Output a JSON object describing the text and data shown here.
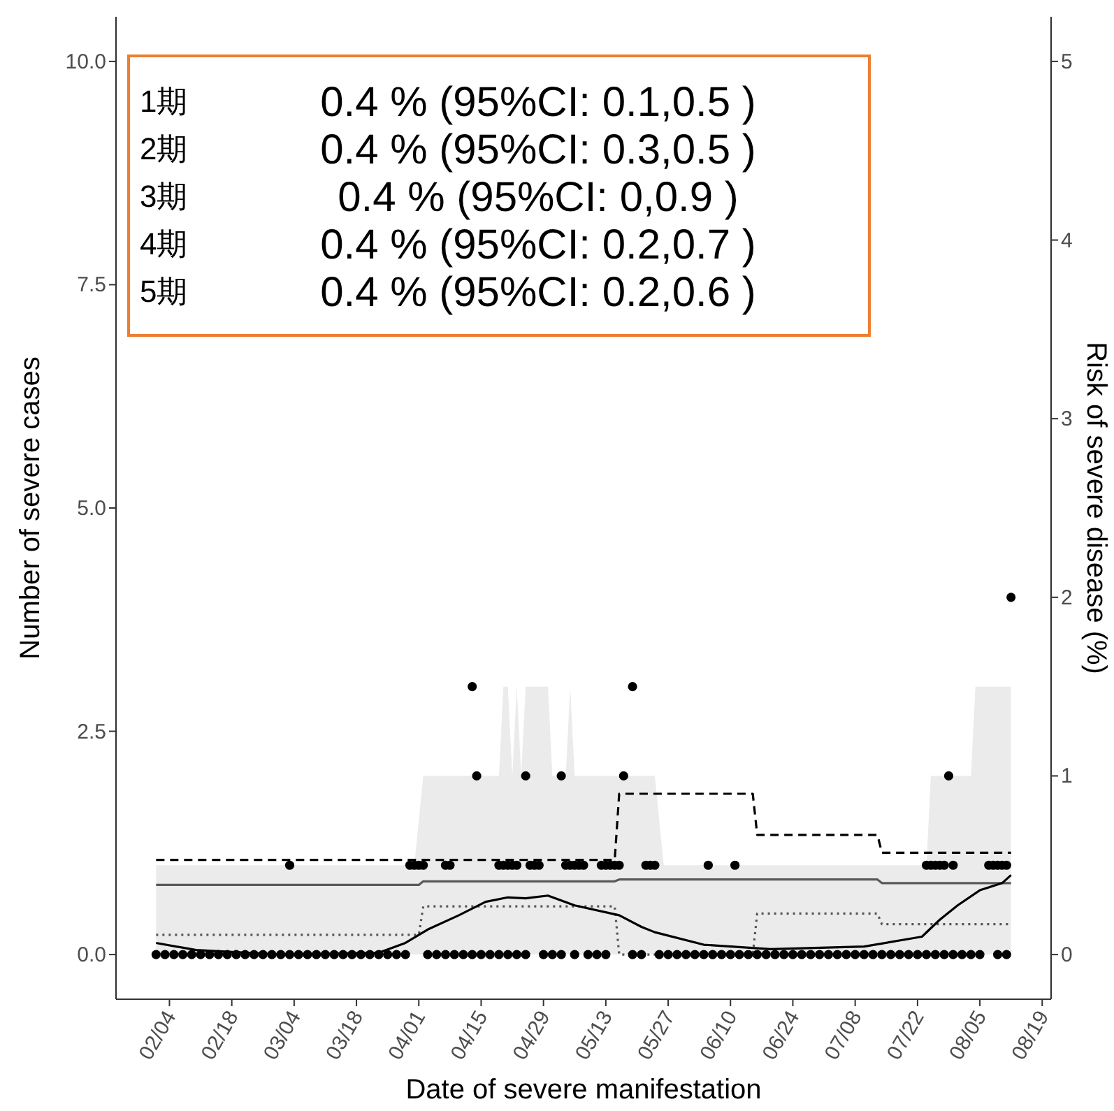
{
  "chart_data": {
    "type": "scatter",
    "xlabel": "Date of severe manifestation",
    "ylabel": "Number of severe cases",
    "y2label": "Risk of severe disease (%)",
    "xlim": [
      "--01-23",
      "--08-21"
    ],
    "xticks": [
      {
        "value": "--02-04",
        "label": "02/04"
      },
      {
        "value": "--02-18",
        "label": "02/18"
      },
      {
        "value": "--03-04",
        "label": "03/04"
      },
      {
        "value": "--03-18",
        "label": "03/18"
      },
      {
        "value": "--04-01",
        "label": "04/01"
      },
      {
        "value": "--04-15",
        "label": "04/15"
      },
      {
        "value": "--04-29",
        "label": "04/29"
      },
      {
        "value": "--05-13",
        "label": "05/13"
      },
      {
        "value": "--05-27",
        "label": "05/27"
      },
      {
        "value": "--06-10",
        "label": "06/10"
      },
      {
        "value": "--06-24",
        "label": "06/24"
      },
      {
        "value": "--07-08",
        "label": "07/08"
      },
      {
        "value": "--07-22",
        "label": "07/22"
      },
      {
        "value": "--08-05",
        "label": "08/05"
      },
      {
        "value": "--08-19",
        "label": "08/19"
      }
    ],
    "ylim": [
      -0.5,
      10.5
    ],
    "yticks": [
      {
        "value": 0,
        "label": "0.0"
      },
      {
        "value": 2.5,
        "label": "2.5"
      },
      {
        "value": 5,
        "label": "5.0"
      },
      {
        "value": 7.5,
        "label": "7.5"
      },
      {
        "value": 10,
        "label": "10.0"
      }
    ],
    "y2lim": [
      -0.25,
      5.25
    ],
    "y2ticks": [
      0,
      1,
      2,
      3,
      4,
      5
    ],
    "grid": false,
    "series": [
      {
        "type": "area",
        "color": "#ebebeb",
        "x": [
          "--02-01",
          "--03-31",
          "--04-02",
          "--04-19",
          "--04-20",
          "--04-21",
          "--04-22",
          "--04-23",
          "--04-24",
          "--04-25",
          "--04-30",
          "--05-01",
          "--05-04",
          "--05-05",
          "--05-06",
          "--05-24",
          "--05-26",
          "--07-24",
          "--07-25",
          "--08-03",
          "--08-04",
          "--08-12"
        ],
        "values": [
          1,
          1,
          2,
          2,
          3,
          3,
          2,
          3,
          2,
          3,
          3,
          2,
          2,
          3,
          2,
          2,
          1,
          1,
          2,
          2,
          3,
          3
        ]
      },
      {
        "type": "line",
        "axis": "y2",
        "color": "#595959",
        "line_style": "solid",
        "x": [
          "--02-01",
          "--04-01",
          "--04-02",
          "--05-15",
          "--05-16",
          "--06-15",
          "--06-16",
          "--07-13",
          "--07-14",
          "--08-12"
        ],
        "values": [
          0.39,
          0.39,
          0.41,
          0.41,
          0.42,
          0.42,
          0.42,
          0.42,
          0.4,
          0.4
        ]
      },
      {
        "type": "line",
        "axis": "y2",
        "color": "#000000",
        "line_style": "dashed",
        "x": [
          "--02-01",
          "--04-01",
          "--04-02",
          "--05-15",
          "--05-16",
          "--06-15",
          "--06-16",
          "--07-13",
          "--07-14",
          "--08-12"
        ],
        "values": [
          0.53,
          0.53,
          0.53,
          0.53,
          0.9,
          0.9,
          0.67,
          0.67,
          0.57,
          0.57
        ]
      },
      {
        "type": "line",
        "axis": "y2",
        "color": "#555555",
        "line_style": "dotted",
        "x": [
          "--02-01",
          "--04-01",
          "--04-02",
          "--05-15",
          "--05-16",
          "--06-15",
          "--06-16",
          "--07-13",
          "--07-14",
          "--08-12"
        ],
        "values": [
          0.11,
          0.11,
          0.27,
          0.27,
          0,
          0,
          0.23,
          0.23,
          0.17,
          0.17
        ]
      },
      {
        "type": "line",
        "axis": "y",
        "color": "#000000",
        "line_style": "solid",
        "x": [
          "--02-01",
          "--02-10",
          "--03-01",
          "--03-23",
          "--03-29",
          "--04-03",
          "--04-10",
          "--04-16",
          "--04-21",
          "--04-25",
          "--04-30",
          "--05-06",
          "--05-16",
          "--05-21",
          "--05-24",
          "--06-04",
          "--06-19",
          "--07-10",
          "--07-23",
          "--07-27",
          "--07-31",
          "--08-05",
          "--08-10",
          "--08-12"
        ],
        "values": [
          0.13,
          0.05,
          0,
          0.02,
          0.13,
          0.28,
          0.44,
          0.59,
          0.64,
          0.63,
          0.66,
          0.55,
          0.44,
          0.31,
          0.25,
          0.11,
          0.06,
          0.09,
          0.2,
          0.39,
          0.55,
          0.72,
          0.8,
          0.89
        ]
      },
      {
        "marker": "circle",
        "axis": "y",
        "color": "#000000",
        "x": [
          "--02-01",
          "--02-03",
          "--02-05",
          "--02-07",
          "--02-09",
          "--02-11",
          "--02-13",
          "--02-15",
          "--02-17",
          "--02-19",
          "--02-21",
          "--02-23",
          "--02-25",
          "--02-27",
          "--03-01",
          "--03-03",
          "--03-05",
          "--03-07",
          "--03-09",
          "--03-11",
          "--03-13",
          "--03-15",
          "--03-17",
          "--03-19",
          "--03-21",
          "--03-23",
          "--03-25",
          "--03-27",
          "--03-29",
          "--04-03",
          "--04-05",
          "--04-07",
          "--04-09",
          "--04-11",
          "--04-13",
          "--04-15",
          "--04-17",
          "--04-19",
          "--04-21",
          "--04-23",
          "--04-25",
          "--04-29",
          "--05-01",
          "--05-03",
          "--05-06",
          "--05-09",
          "--05-11",
          "--05-13",
          "--05-19",
          "--05-21",
          "--05-25",
          "--05-27",
          "--05-29",
          "--05-31",
          "--06-02",
          "--06-04",
          "--06-06",
          "--06-08",
          "--06-10",
          "--06-12",
          "--06-14",
          "--06-16",
          "--06-18",
          "--06-20",
          "--06-22",
          "--06-24",
          "--06-26",
          "--06-28",
          "--06-30",
          "--07-02",
          "--07-04",
          "--07-06",
          "--07-08",
          "--07-10",
          "--07-12",
          "--07-14",
          "--07-16",
          "--07-18",
          "--07-20",
          "--07-22",
          "--07-24",
          "--07-26",
          "--07-28",
          "--07-30",
          "--08-01",
          "--08-03",
          "--08-05",
          "--08-09",
          "--08-11",
          "--03-03",
          "--03-30",
          "--03-31",
          "--04-01",
          "--04-02",
          "--04-07",
          "--04-08",
          "--04-19",
          "--04-20",
          "--04-21",
          "--04-22",
          "--04-23",
          "--04-26",
          "--04-27",
          "--04-28",
          "--05-04",
          "--05-05",
          "--05-06",
          "--05-07",
          "--05-08",
          "--05-12",
          "--05-13",
          "--05-14",
          "--05-15",
          "--05-16",
          "--05-22",
          "--05-23",
          "--05-24",
          "--06-05",
          "--06-11",
          "--07-24",
          "--07-25",
          "--07-26",
          "--07-27",
          "--07-28",
          "--07-30",
          "--08-07",
          "--08-08",
          "--08-09",
          "--08-10",
          "--08-11",
          "--04-14",
          "--04-25",
          "--05-03",
          "--05-17",
          "--07-29",
          "--04-13",
          "--05-19",
          "--08-12"
        ],
        "values": [
          0,
          0,
          0,
          0,
          0,
          0,
          0,
          0,
          0,
          0,
          0,
          0,
          0,
          0,
          0,
          0,
          0,
          0,
          0,
          0,
          0,
          0,
          0,
          0,
          0,
          0,
          0,
          0,
          0,
          0,
          0,
          0,
          0,
          0,
          0,
          0,
          0,
          0,
          0,
          0,
          0,
          0,
          0,
          0,
          0,
          0,
          0,
          0,
          0,
          0,
          0,
          0,
          0,
          0,
          0,
          0,
          0,
          0,
          0,
          0,
          0,
          0,
          0,
          0,
          0,
          0,
          0,
          0,
          0,
          0,
          0,
          0,
          0,
          0,
          0,
          0,
          0,
          0,
          0,
          0,
          0,
          0,
          0,
          0,
          0,
          0,
          0,
          0,
          0,
          1,
          1,
          1,
          1,
          1,
          1,
          1,
          1,
          1,
          1,
          1,
          1,
          1,
          1,
          1,
          1,
          1,
          1,
          1,
          1,
          1,
          1,
          1,
          1,
          1,
          1,
          1,
          1,
          1,
          1,
          1,
          1,
          1,
          1,
          1,
          1,
          1,
          1,
          1,
          1,
          1,
          2,
          2,
          2,
          2,
          2,
          3,
          3,
          4
        ]
      }
    ],
    "annotations": [
      "1期",
      "2期",
      "3期",
      "4期",
      "5期",
      "0.4 % (95%CI: 0.1,0.5 )",
      "0.4 % (95%CI: 0.3,0.5 )",
      "0.4 % (95%CI: 0,0.9 )",
      "0.4 % (95%CI: 0.2,0.7 )",
      "0.4 % (95%CI: 0.2,0.6 )"
    ]
  }
}
